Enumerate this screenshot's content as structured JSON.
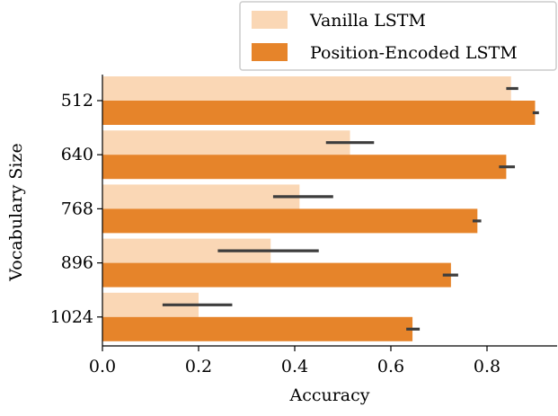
{
  "chart_data": {
    "type": "bar",
    "orientation": "horizontal",
    "categories": [
      "512",
      "640",
      "768",
      "896",
      "1024"
    ],
    "series": [
      {
        "name": "Vanilla LSTM",
        "values": [
          0.85,
          0.515,
          0.41,
          0.35,
          0.2
        ],
        "ci": [
          [
            0.84,
            0.865
          ],
          [
            0.465,
            0.565
          ],
          [
            0.355,
            0.48
          ],
          [
            0.24,
            0.45
          ],
          [
            0.125,
            0.27
          ]
        ]
      },
      {
        "name": "Position-Encoded LSTM",
        "values": [
          0.9,
          0.84,
          0.78,
          0.725,
          0.645
        ],
        "ci": [
          [
            0.895,
            0.908
          ],
          [
            0.825,
            0.858
          ],
          [
            0.77,
            0.788
          ],
          [
            0.708,
            0.74
          ],
          [
            0.632,
            0.66
          ]
        ]
      }
    ],
    "xlabel": "Accuracy",
    "ylabel": "Vocabulary Size",
    "xlim": [
      0,
      0.93
    ],
    "xticks": [
      "0.0",
      "0.2",
      "0.4",
      "0.6",
      "0.8"
    ],
    "grid": false,
    "legend": "top-right",
    "colors": {
      "Vanilla LSTM": "#fad7b5",
      "Position-Encoded LSTM": "#e6842a",
      "error_bar": "#3d3d3d"
    }
  }
}
